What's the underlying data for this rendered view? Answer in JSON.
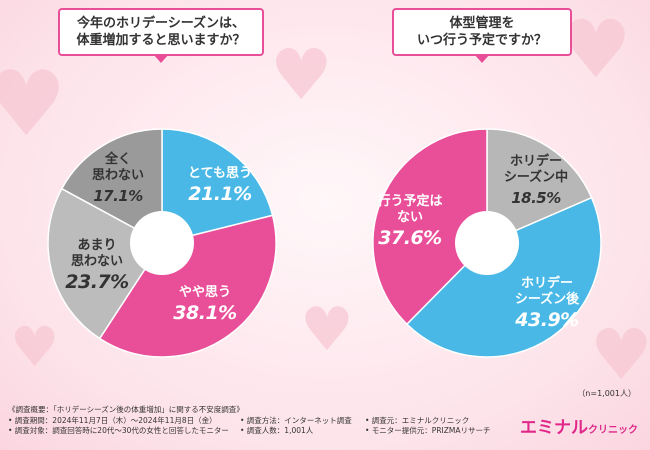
{
  "colors": {
    "pink": "#e94f98",
    "blue": "#49b8e6",
    "gray_light": "#bcbcbc",
    "gray_dark": "#9a9a9a",
    "gray_mid": "#b7b7b7"
  },
  "question1": {
    "line1": "今年のホリデーシーズンは、",
    "line2": "体重増加すると思いますか？"
  },
  "question2": {
    "line1": "体型管理を",
    "line2": "いつ行う予定ですか？"
  },
  "chart_data": [
    {
      "type": "pie",
      "title": "今年のホリデーシーズンは、体重増加すると思いますか？",
      "categories": [
        "とても思う",
        "やや思う",
        "あまり思わない",
        "全く思わない"
      ],
      "values": [
        21.1,
        38.1,
        23.7,
        17.1
      ],
      "display": [
        "21.1%",
        "38.1%",
        "23.7%",
        "17.1%"
      ],
      "label_lines": [
        [
          "とても思う"
        ],
        [
          "やや思う"
        ],
        [
          "あまり",
          "思わない"
        ],
        [
          "全く",
          "思わない"
        ]
      ],
      "colors": [
        "#49b8e6",
        "#e94f98",
        "#bcbcbc",
        "#9a9a9a"
      ]
    },
    {
      "type": "pie",
      "title": "体型管理をいつ行う予定ですか？",
      "categories": [
        "ホリデーシーズン中",
        "ホリデーシーズン後",
        "行う予定はない"
      ],
      "values": [
        18.5,
        43.9,
        37.6
      ],
      "display": [
        "18.5%",
        "43.9%",
        "37.6%"
      ],
      "label_lines": [
        [
          "ホリデー",
          "シーズン中"
        ],
        [
          "ホリデー",
          "シーズン後"
        ],
        [
          "行う予定は",
          "ない"
        ]
      ],
      "colors": [
        "#b7b7b7",
        "#49b8e6",
        "#e94f98"
      ]
    }
  ],
  "sample_size": "（n=1,001人）",
  "footnotes": {
    "overview": "《調査概要：「ホリデーシーズン後の体重増加」に関する不安度調査》",
    "period": "• 調査期間：2024年11月7日（木）〜2024年11月8日（金）",
    "method": "• 調査方法：インターネット調査",
    "source": "• 調査元：エミナルクリニック",
    "target": "• 調査対象：調査回答時に20代〜30代の女性と回答したモニター",
    "count": "• 調査人数：1,001人",
    "provider": "• モニター提供元：PRIZMAリサーチ"
  },
  "brand": {
    "name": "エミナル",
    "sub": "クリニック"
  }
}
